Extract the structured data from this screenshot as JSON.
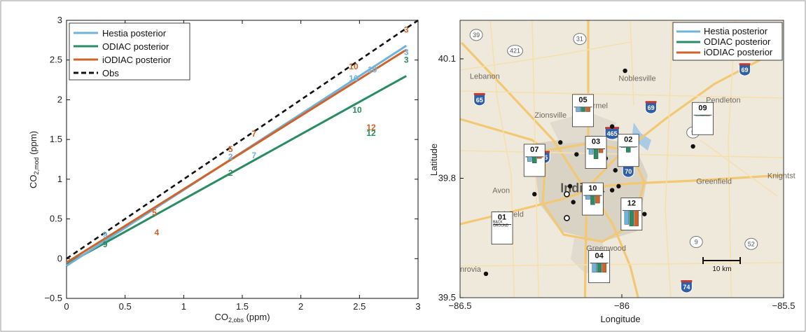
{
  "colors": {
    "hestia": "#6fb3dd",
    "odiac": "#2a8c63",
    "iodiac": "#d0632a",
    "obs": "#111111"
  },
  "chart_data": [
    {
      "type": "line",
      "xlabel_main": "CO",
      "xlabel_sub": "2,obs",
      "xlabel_unit": " (ppm)",
      "ylabel_main": "CO",
      "ylabel_sub": "2,mod",
      "ylabel_unit": " (ppm)",
      "xlim": [
        0,
        3
      ],
      "ylim": [
        -0.5,
        3
      ],
      "xticks": [
        "0",
        "0.5",
        "1",
        "1.5",
        "2",
        "2.5",
        "3"
      ],
      "yticks": [
        "−0.5",
        "0",
        "0.5",
        "1",
        "1.5",
        "2",
        "2.5",
        "3"
      ],
      "legend_position": "top-left",
      "series": [
        {
          "name": "Hestia posterior",
          "key": "hestia",
          "style": "solid",
          "x": [
            0,
            2.9
          ],
          "y": [
            -0.09,
            2.68
          ]
        },
        {
          "name": "ODIAC posterior",
          "key": "odiac",
          "style": "solid",
          "x": [
            0,
            2.9
          ],
          "y": [
            -0.07,
            2.3
          ]
        },
        {
          "name": "iODIAC posterior",
          "key": "iodiac",
          "style": "solid",
          "x": [
            0,
            2.9
          ],
          "y": [
            -0.05,
            2.63
          ]
        },
        {
          "name": "Obs",
          "key": "obs",
          "style": "dashed",
          "x": [
            0,
            3
          ],
          "y": [
            0,
            3
          ]
        }
      ],
      "point_labels": [
        {
          "text": "3",
          "key": "iodiac",
          "x": 2.9,
          "y": 2.88
        },
        {
          "text": "3",
          "key": "hestia",
          "x": 2.9,
          "y": 2.6
        },
        {
          "text": "3",
          "key": "odiac",
          "x": 2.9,
          "y": 2.5
        },
        {
          "text": "10",
          "key": "iodiac",
          "x": 2.45,
          "y": 2.42
        },
        {
          "text": "10",
          "key": "hestia",
          "x": 2.45,
          "y": 2.27
        },
        {
          "text": "10",
          "key": "hestia",
          "x": 2.61,
          "y": 2.38
        },
        {
          "text": "10",
          "key": "odiac",
          "x": 2.48,
          "y": 1.87
        },
        {
          "text": "12",
          "key": "iodiac",
          "x": 2.6,
          "y": 1.65
        },
        {
          "text": "12",
          "key": "odiac",
          "x": 2.6,
          "y": 1.58
        },
        {
          "text": "7",
          "key": "iodiac",
          "x": 1.6,
          "y": 1.57
        },
        {
          "text": "7",
          "key": "hestia",
          "x": 1.6,
          "y": 1.3
        },
        {
          "text": "5",
          "key": "iodiac",
          "x": 1.4,
          "y": 1.38
        },
        {
          "text": "2",
          "key": "hestia",
          "x": 1.4,
          "y": 1.28
        },
        {
          "text": "2",
          "key": "odiac",
          "x": 1.4,
          "y": 1.08
        },
        {
          "text": "5",
          "key": "iodiac",
          "x": 0.75,
          "y": 0.58
        },
        {
          "text": "4",
          "key": "iodiac",
          "x": 0.77,
          "y": 0.33
        },
        {
          "text": "9",
          "key": "hestia",
          "x": 0.33,
          "y": 0.3
        },
        {
          "text": "9",
          "key": "odiac",
          "x": 0.33,
          "y": 0.18
        }
      ]
    },
    {
      "type": "bar",
      "title": "",
      "xlabel": "Longitude",
      "ylabel": "Latitude",
      "xlim": [
        -86.5,
        -85.5
      ],
      "ylim": [
        39.5,
        40.1
      ],
      "xticks": [
        {
          "v": -86.5,
          "t": "−86.5"
        },
        {
          "v": -86.0,
          "t": "−86"
        },
        {
          "v": -85.5,
          "t": "−85.5"
        }
      ],
      "yticks": [
        {
          "v": 39.5,
          "t": "39.5"
        },
        {
          "v": 39.8,
          "t": "39.8"
        },
        {
          "v": 40.1,
          "t": "40.1"
        }
      ],
      "legend_position": "top-right",
      "series_names": [
        "Hestia posterior",
        "ODIAC posterior",
        "iODIAC posterior"
      ],
      "sites": [
        {
          "id": "01",
          "lon": -86.42,
          "lat": 39.56,
          "box_lon": -86.37,
          "box_lat": 39.675,
          "bars": [
            0,
            0,
            0
          ],
          "note": [
            "BACK",
            "GROUND"
          ]
        },
        {
          "id": "02",
          "lon": -86.01,
          "lat": 39.78,
          "box_lon": -85.98,
          "box_lat": 39.87,
          "bars": [
            0.05,
            0.35,
            0.03
          ],
          "note": []
        },
        {
          "id": "03",
          "lon": -86.14,
          "lat": 39.86,
          "box_lon": -86.08,
          "box_lat": 39.865,
          "bars": [
            0.35,
            0.65,
            0.25
          ],
          "note": []
        },
        {
          "id": "04",
          "lon": -86.09,
          "lat": 39.58,
          "box_lon": -86.07,
          "box_lat": 39.578,
          "bars": [
            0.6,
            0.6,
            0.6
          ],
          "note": []
        },
        {
          "id": "05",
          "lon": -86.19,
          "lat": 39.89,
          "box_lon": -86.12,
          "box_lat": 39.97,
          "bars": [
            0.3,
            0.3,
            0.3
          ],
          "note": []
        },
        {
          "id": "07",
          "lon": -86.27,
          "lat": 39.76,
          "box_lon": -86.27,
          "box_lat": 39.845,
          "bars": [
            0.3,
            0.4,
            0.1
          ],
          "note": []
        },
        {
          "id": "09",
          "lon": -85.78,
          "lat": 39.88,
          "box_lon": -85.75,
          "box_lat": 39.95,
          "bars": [
            0.05,
            0.05,
            0.05
          ],
          "note": []
        },
        {
          "id": "10",
          "lon": -86.08,
          "lat": 39.75,
          "box_lon": -86.09,
          "box_lat": 39.748,
          "bars": [
            0.25,
            0.6,
            0.5
          ],
          "note": []
        },
        {
          "id": "12",
          "lon": -85.93,
          "lat": 39.71,
          "box_lon": -85.97,
          "box_lat": 39.71,
          "bars": [
            0.9,
            1.0,
            1.0
          ],
          "note": []
        }
      ],
      "extra_points": [
        {
          "lon": -85.99,
          "lat": 40.07
        },
        {
          "lon": -86.03,
          "lat": 39.93
        },
        {
          "lon": -86.16,
          "lat": 39.78
        },
        {
          "lon": -86.15,
          "lat": 39.74
        },
        {
          "lon": -86.03,
          "lat": 39.77
        },
        {
          "lon": -86.02,
          "lat": 39.82
        },
        {
          "lon": -86.05,
          "lat": 39.85
        }
      ],
      "open_points": [
        {
          "lon": -86.17,
          "lat": 39.76
        },
        {
          "lon": -86.17,
          "lat": 39.7
        }
      ],
      "scale_bar": {
        "label": "10 km"
      },
      "place_names": [
        {
          "text": "Lebanon",
          "lon": -86.47,
          "lat": 40.05
        },
        {
          "text": "Noblesville",
          "lon": -86.01,
          "lat": 40.045
        },
        {
          "text": "Carmel",
          "lon": -86.12,
          "lat": 39.976
        },
        {
          "text": "Zionsville",
          "lon": -86.27,
          "lat": 39.952
        },
        {
          "text": "Pendleton",
          "lon": -85.74,
          "lat": 39.99
        },
        {
          "text": "Avon",
          "lon": -86.4,
          "lat": 39.763
        },
        {
          "text": "Greenfield",
          "lon": -85.77,
          "lat": 39.786
        },
        {
          "text": "Knightst",
          "lon": -85.55,
          "lat": 39.8
        },
        {
          "text": "Plainfield",
          "lon": -86.4,
          "lat": 39.703
        },
        {
          "text": "Greenwood",
          "lon": -86.11,
          "lat": 39.618
        },
        {
          "text": "nrovia",
          "lon": -86.5,
          "lat": 39.565
        }
      ],
      "city_name": {
        "text": "Indiana",
        "lon": -86.19,
        "lat": 39.765
      },
      "interstates": [
        {
          "num": "65",
          "lon": -86.44,
          "lat": 40.0
        },
        {
          "num": "69",
          "lon": -85.62,
          "lat": 40.075
        },
        {
          "num": "69",
          "lon": -85.91,
          "lat": 39.98
        },
        {
          "num": "465",
          "lon": -86.03,
          "lat": 39.915
        },
        {
          "num": "465",
          "lon": -86.07,
          "lat": 39.862
        },
        {
          "num": "65",
          "lon": -86.24,
          "lat": 39.855
        },
        {
          "num": "70",
          "lon": -85.98,
          "lat": 39.82
        },
        {
          "num": "74",
          "lon": -85.8,
          "lat": 39.53
        }
      ],
      "us_routes": [
        {
          "num": "39",
          "lon": -86.45,
          "lat": 40.16
        },
        {
          "num": "421",
          "lon": -86.33,
          "lat": 40.12
        },
        {
          "num": "31",
          "lon": -86.13,
          "lat": 40.15
        },
        {
          "num": "9",
          "lon": -85.78,
          "lat": 39.915
        },
        {
          "num": "9",
          "lon": -85.77,
          "lat": 39.64
        },
        {
          "num": "52",
          "lon": -85.6,
          "lat": 39.635
        }
      ]
    }
  ]
}
